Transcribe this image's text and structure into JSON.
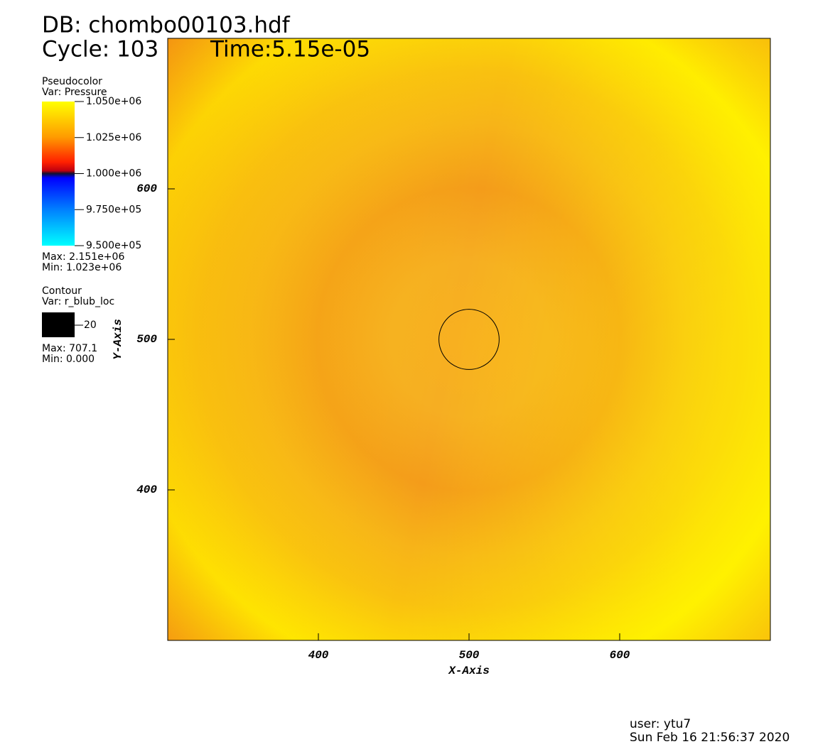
{
  "chart_data": {
    "type": "pseudocolor",
    "title": "DB: chombo00103.hdf",
    "cycle": "Cycle: 103",
    "time": "Time:5.15e-05",
    "x_label": "X-Axis",
    "y_label": "Y-Axis",
    "xlim": [
      300,
      700
    ],
    "ylim": [
      300,
      700
    ],
    "xticks": [
      400,
      500,
      600
    ],
    "yticks": [
      400,
      500,
      600
    ],
    "pseudocolor": {
      "plot": "Pseudocolor",
      "var": "Var: Pressure",
      "clim": [
        950000,
        1050000
      ],
      "ticks": [
        {
          "value": 1050000,
          "label": "1.050e+06"
        },
        {
          "value": 1025000,
          "label": "1.025e+06"
        },
        {
          "value": 1000000,
          "label": "1.000e+06"
        },
        {
          "value": 975000,
          "label": "9.750e+05"
        },
        {
          "value": 950000,
          "label": "9.500e+05"
        }
      ],
      "max": "Max: 2.151e+06",
      "min": "Min:  1.023e+06"
    },
    "contour": {
      "plot": "Contour",
      "var": "Var: r_blub_loc",
      "levels": [
        20
      ],
      "center": [
        500,
        500
      ],
      "color": "#000000",
      "max": "Max: 707.1",
      "min": "Min: 0.000"
    },
    "user": "user: ytu7",
    "date": "Sun Feb 16 21:56:37 2020"
  }
}
